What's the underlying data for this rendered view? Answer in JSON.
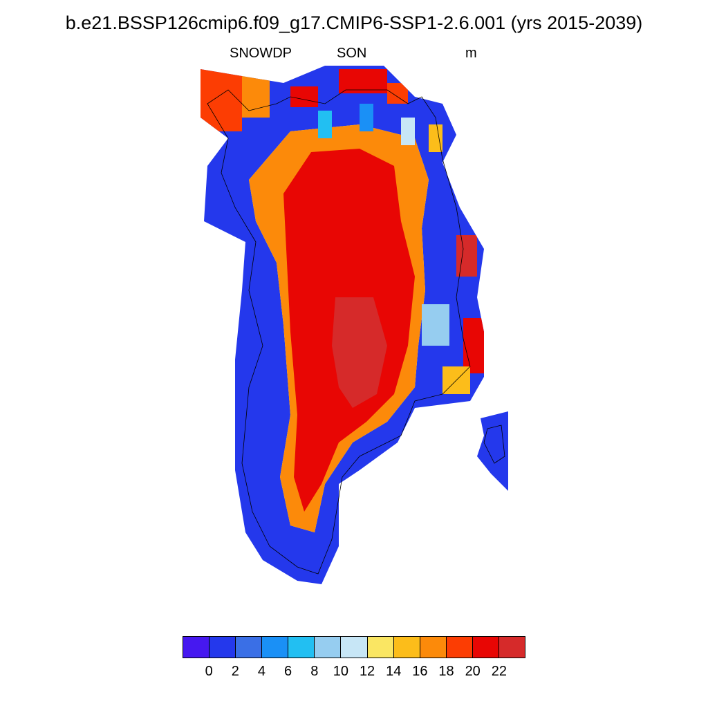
{
  "title": "b.e21.BSSP126cmip6.f09_g17.CMIP6-SSP1-2.6.001 (yrs 2015-2039)",
  "subtitle": {
    "left": "SNOWDP",
    "center": "SON",
    "right": "m"
  },
  "colorbar": {
    "colors": [
      "#4618f0",
      "#2438ec",
      "#3a6fe6",
      "#1a90f6",
      "#22bff2",
      "#96cdf0",
      "#c7e6f6",
      "#fae663",
      "#fcbd1a",
      "#fc8a0a",
      "#fc3d03",
      "#e80604",
      "#d62a2a"
    ],
    "tick_labels": [
      "0",
      "2",
      "4",
      "6",
      "8",
      "10",
      "12",
      "14",
      "16",
      "18",
      "20",
      "22"
    ]
  },
  "chart_data": {
    "type": "heatmap",
    "variable": "SNOWDP",
    "season": "SON",
    "units": "m",
    "levels": [
      0,
      2,
      4,
      6,
      8,
      10,
      12,
      14,
      16,
      18,
      20,
      22
    ],
    "region": "Greenland",
    "description_of_field": "Ice-sheet interior >=20 m (red), central core >22 m; margins graded through orange/yellow/light blue to 0-2 m (dark blue) along the coasts, especially southwest."
  }
}
